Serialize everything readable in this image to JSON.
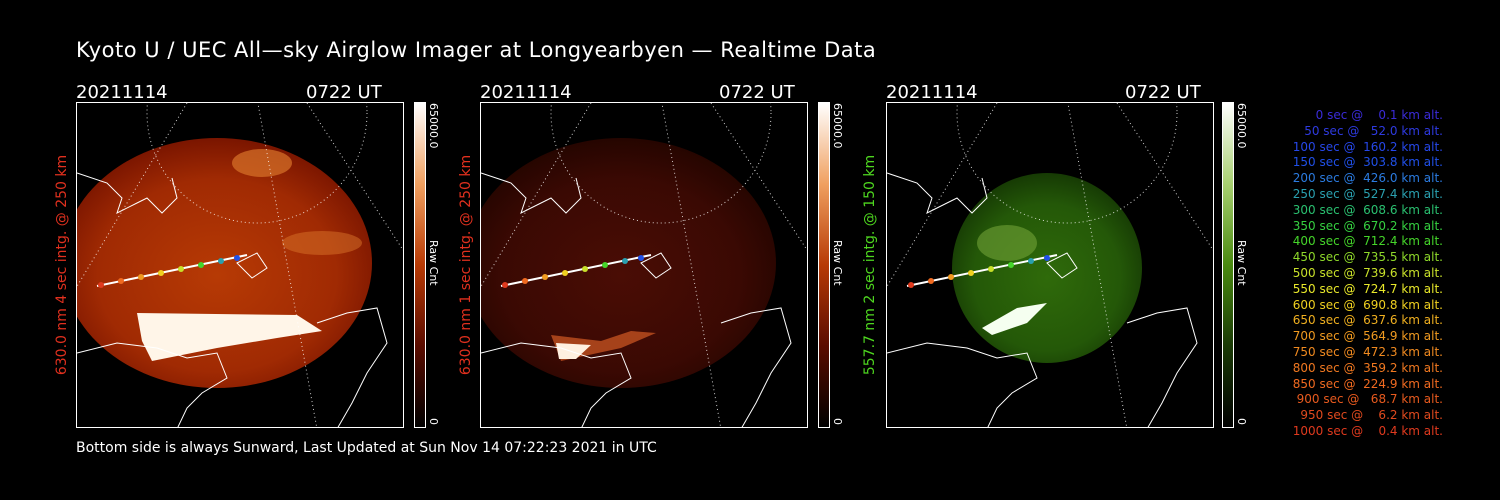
{
  "title": "Kyoto U / UEC All—sky Airglow Imager at Longyearbyen — Realtime Data",
  "footer": "Bottom side is always Sunward, Last Updated at Sun Nov 14 07:22:23 2021 in UTC",
  "panels": [
    {
      "date": "20211114",
      "time": "0722 UT",
      "ylabel": "630.0 nm 4 sec intg. @ 250 km",
      "label_color": "#e0301e",
      "cbar_max": "65000.0",
      "cbar_min": "0",
      "cbar_unit": "Raw Cnt",
      "palette": "red"
    },
    {
      "date": "20211114",
      "time": "0722 UT",
      "ylabel": "630.0 nm 1 sec intg. @ 250 km",
      "label_color": "#e0301e",
      "cbar_max": "65000.0",
      "cbar_min": "0",
      "cbar_unit": "Raw Cnt",
      "palette": "red-dim"
    },
    {
      "date": "20211114",
      "time": "0722 UT",
      "ylabel": "557.7 nm 2 sec intg. @ 150 km",
      "label_color": "#4ed61f",
      "cbar_max": "65000.0",
      "cbar_min": "0",
      "cbar_unit": "Raw Cnt",
      "palette": "green"
    }
  ],
  "legend": [
    {
      "text": "   0 sec @    0.1 km alt.",
      "color": "#3a2bd8"
    },
    {
      "text": "  50 sec @   52.0 km alt.",
      "color": "#2e3ae0"
    },
    {
      "text": " 100 sec @  160.2 km alt.",
      "color": "#2647e8"
    },
    {
      "text": " 150 sec @  303.8 km alt.",
      "color": "#2050e8"
    },
    {
      "text": " 200 sec @  426.0 km alt.",
      "color": "#2b7be0"
    },
    {
      "text": " 250 sec @  527.4 km alt.",
      "color": "#2aa0b0"
    },
    {
      "text": " 300 sec @  608.6 km alt.",
      "color": "#2ac070"
    },
    {
      "text": " 350 sec @  670.2 km alt.",
      "color": "#35d040"
    },
    {
      "text": " 400 sec @  712.4 km alt.",
      "color": "#45d52a"
    },
    {
      "text": " 450 sec @  735.5 km alt.",
      "color": "#8ed82a"
    },
    {
      "text": " 500 sec @  739.6 km alt.",
      "color": "#c8e02a"
    },
    {
      "text": " 550 sec @  724.7 km alt.",
      "color": "#e8e82a"
    },
    {
      "text": " 600 sec @  690.8 km alt.",
      "color": "#f0d020"
    },
    {
      "text": " 650 sec @  637.6 km alt.",
      "color": "#f0b020"
    },
    {
      "text": " 700 sec @  564.9 km alt.",
      "color": "#f09a20"
    },
    {
      "text": " 750 sec @  472.3 km alt.",
      "color": "#f08a20"
    },
    {
      "text": " 800 sec @  359.2 km alt.",
      "color": "#f07820"
    },
    {
      "text": " 850 sec @  224.9 km alt.",
      "color": "#f06a20"
    },
    {
      "text": " 900 sec @   68.7 km alt.",
      "color": "#e85a1e"
    },
    {
      "text": " 950 sec @    6.2 km alt.",
      "color": "#e04a1e"
    },
    {
      "text": "1000 sec @    0.4 km alt.",
      "color": "#e03a1e"
    }
  ]
}
